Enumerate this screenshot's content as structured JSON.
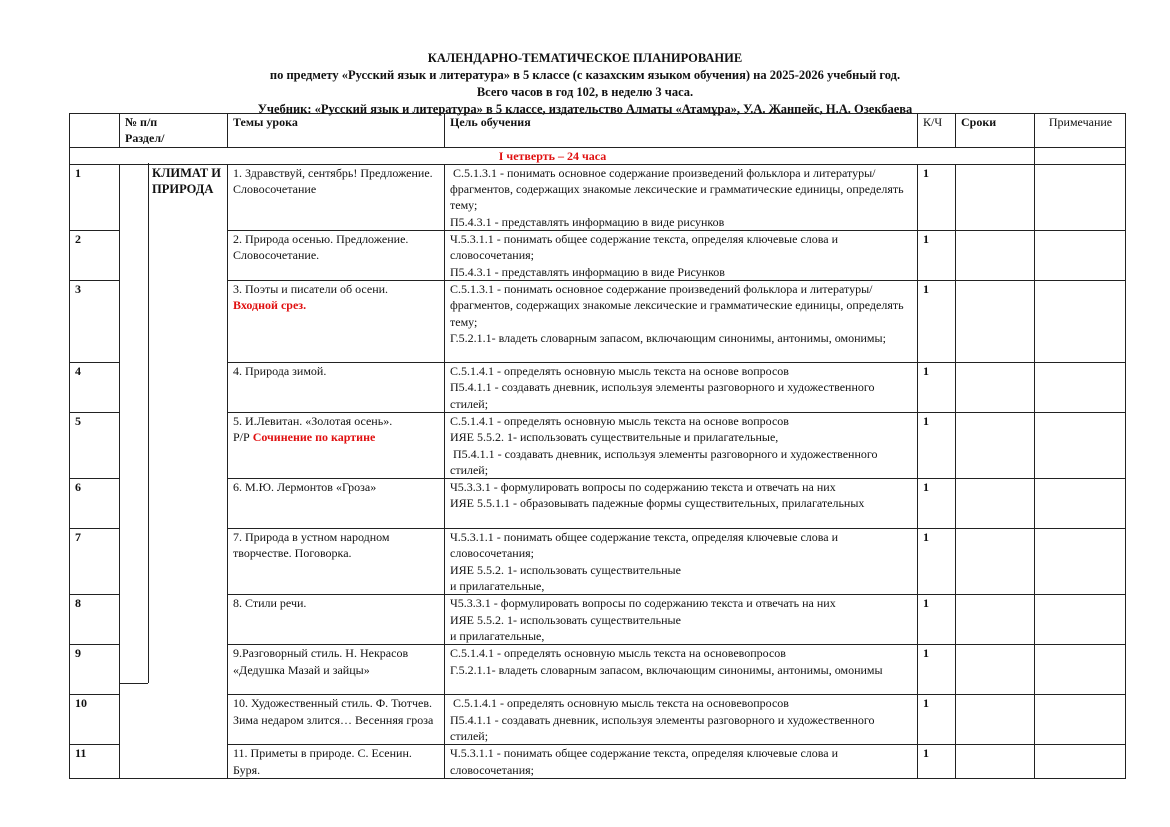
{
  "titles": [
    "КАЛЕНДАРНО-ТЕМАТИЧЕСКОЕ ПЛАНИРОВАНИЕ",
    "по предмету «Русский язык и литература» в 5 классе (с казахским языком обучения) на 2025-2026 учебный год.",
    "Всего часов в год 102, в неделю 3 часа.",
    "Учебник: «Русский язык и литература» в 5 классе, издательство Алматы «Атамұра»,   У.А. Жанпейс, Н.А. Озекбаева"
  ],
  "headers": {
    "num": "№ п/п",
    "section": "Раздел/",
    "topic": "Темы урока",
    "goal": "Цель обучения",
    "hours": "К/Ч",
    "dates": "Сроки",
    "note": "Примечание"
  },
  "quarter": "I четверть – 24 часа",
  "section_name": "КЛИМАТ И ПРИРОДА",
  "rows": [
    {
      "num": "1",
      "topic": "1. Здравствуй, сентябрь! Предложение. Словосочетание",
      "topic_prefix": "",
      "topic_red": "",
      "goal": [
        " С.5.1.3.1 - понимать основное содержание произведений фольклора и литературы/фрагментов, содержащих знакомые лексические и грамматические единицы, определять тему;",
        "П5.4.3.1 - представлять информацию в виде рисунков"
      ],
      "hours": "1"
    },
    {
      "num": "2",
      "topic": "2. Природа осенью. Предложение. Словосочетание.",
      "topic_prefix": "",
      "topic_red": "",
      "goal": [
        "Ч.5.3.1.1 - понимать общее содержание текста, определяя ключевые слова и словосочетания;",
        "П5.4.3.1 - представлять информацию в виде Рисунков"
      ],
      "hours": "1"
    },
    {
      "num": " 3",
      "topic": "3. Поэты и писатели об осени.",
      "topic_prefix": "",
      "topic_red": "Входной срез.",
      "goal": [
        "С.5.1.3.1 - понимать основное содержание произведений фольклора и литературы/ фрагментов, содержащих знакомые лексические и грамматические единицы, определять тему;",
        "Г.5.2.1.1- владеть словарным запасом, включающим синонимы, антонимы, омонимы;"
      ],
      "hours": "1"
    },
    {
      "num": "4",
      "topic": "4. Природа зимой.",
      "topic_prefix": "",
      "topic_red": "",
      "goal": [
        "С.5.1.4.1 - определять основную мысль текста на основе вопросов",
        "П5.4.1.1 - создавать дневник, используя элементы разговорного и художественного стилей;"
      ],
      "hours": "1"
    },
    {
      "num": "5",
      "topic": "5. И.Левитан. «Золотая осень».",
      "topic_prefix": " Р/Р ",
      "topic_red": "Сочинение по картине",
      "goal": [
        "С.5.1.4.1 - определять основную мысль текста на основе вопросов",
        "ИЯЕ 5.5.2. 1- использовать существительные и прилагательные,",
        " П5.4.1.1 - создавать дневник, используя элементы разговорного и художественного стилей;"
      ],
      "hours": "1"
    },
    {
      "num": "6",
      "topic": "6.  М.Ю. Лермонтов «Гроза»",
      "topic_prefix": "",
      "topic_red": "",
      "goal": [
        "Ч5.3.3.1 - формулировать вопросы по содержанию текста и отвечать на них",
        "ИЯЕ 5.5.1.1 - образовывать падежные формы существительных, прилагательных"
      ],
      "hours": "1"
    },
    {
      "num": "7",
      "topic": "7. Природа в устном народном творчестве. Поговорка.",
      "topic_prefix": "",
      "topic_red": "",
      "goal": [
        "Ч.5.3.1.1 - понимать общее содержание текста, определяя ключевые слова и словосочетания;",
        "ИЯЕ 5.5.2. 1- использовать существительные",
        "и прилагательные,"
      ],
      "hours": "1"
    },
    {
      "num": "8",
      "topic": "8. Стили речи.",
      "topic_prefix": "",
      "topic_red": "",
      "goal": [
        "Ч5.3.3.1 - формулировать вопросы по содержанию текста и отвечать на них",
        "ИЯЕ 5.5.2. 1- использовать существительные",
        "и прилагательные,"
      ],
      "hours": "1"
    },
    {
      "num": "9",
      "topic": " 9.Разговорный стиль. Н. Некрасов «Дедушка Мазай и зайцы»",
      "topic_prefix": "",
      "topic_red": "",
      "goal": [
        "С.5.1.4.1 - определять основную мысль текста на основевопросов",
        "Г.5.2.1.1- владеть словарным запасом, включающим синонимы, антонимы, омонимы"
      ],
      "hours": "1"
    },
    {
      "num": "10",
      "topic": "10. Художественный стиль. Ф. Тютчев. Зима недаром злится… Весенняя гроза",
      "topic_prefix": "",
      "topic_red": "",
      "goal": [
        " С.5.1.4.1 - определять основную мысль текста на основевопросов",
        "П5.4.1.1 - создавать дневник, используя элементы разговорного и художественного стилей;"
      ],
      "hours": "1"
    },
    {
      "num": "11",
      "topic": "11. Приметы в природе. С. Есенин. Буря.",
      "topic_prefix": "",
      "topic_red": "",
      "goal": [
        "Ч.5.3.1.1 - понимать общее содержание текста, определяя ключевые слова и словосочетания;"
      ],
      "hours": "1"
    }
  ]
}
